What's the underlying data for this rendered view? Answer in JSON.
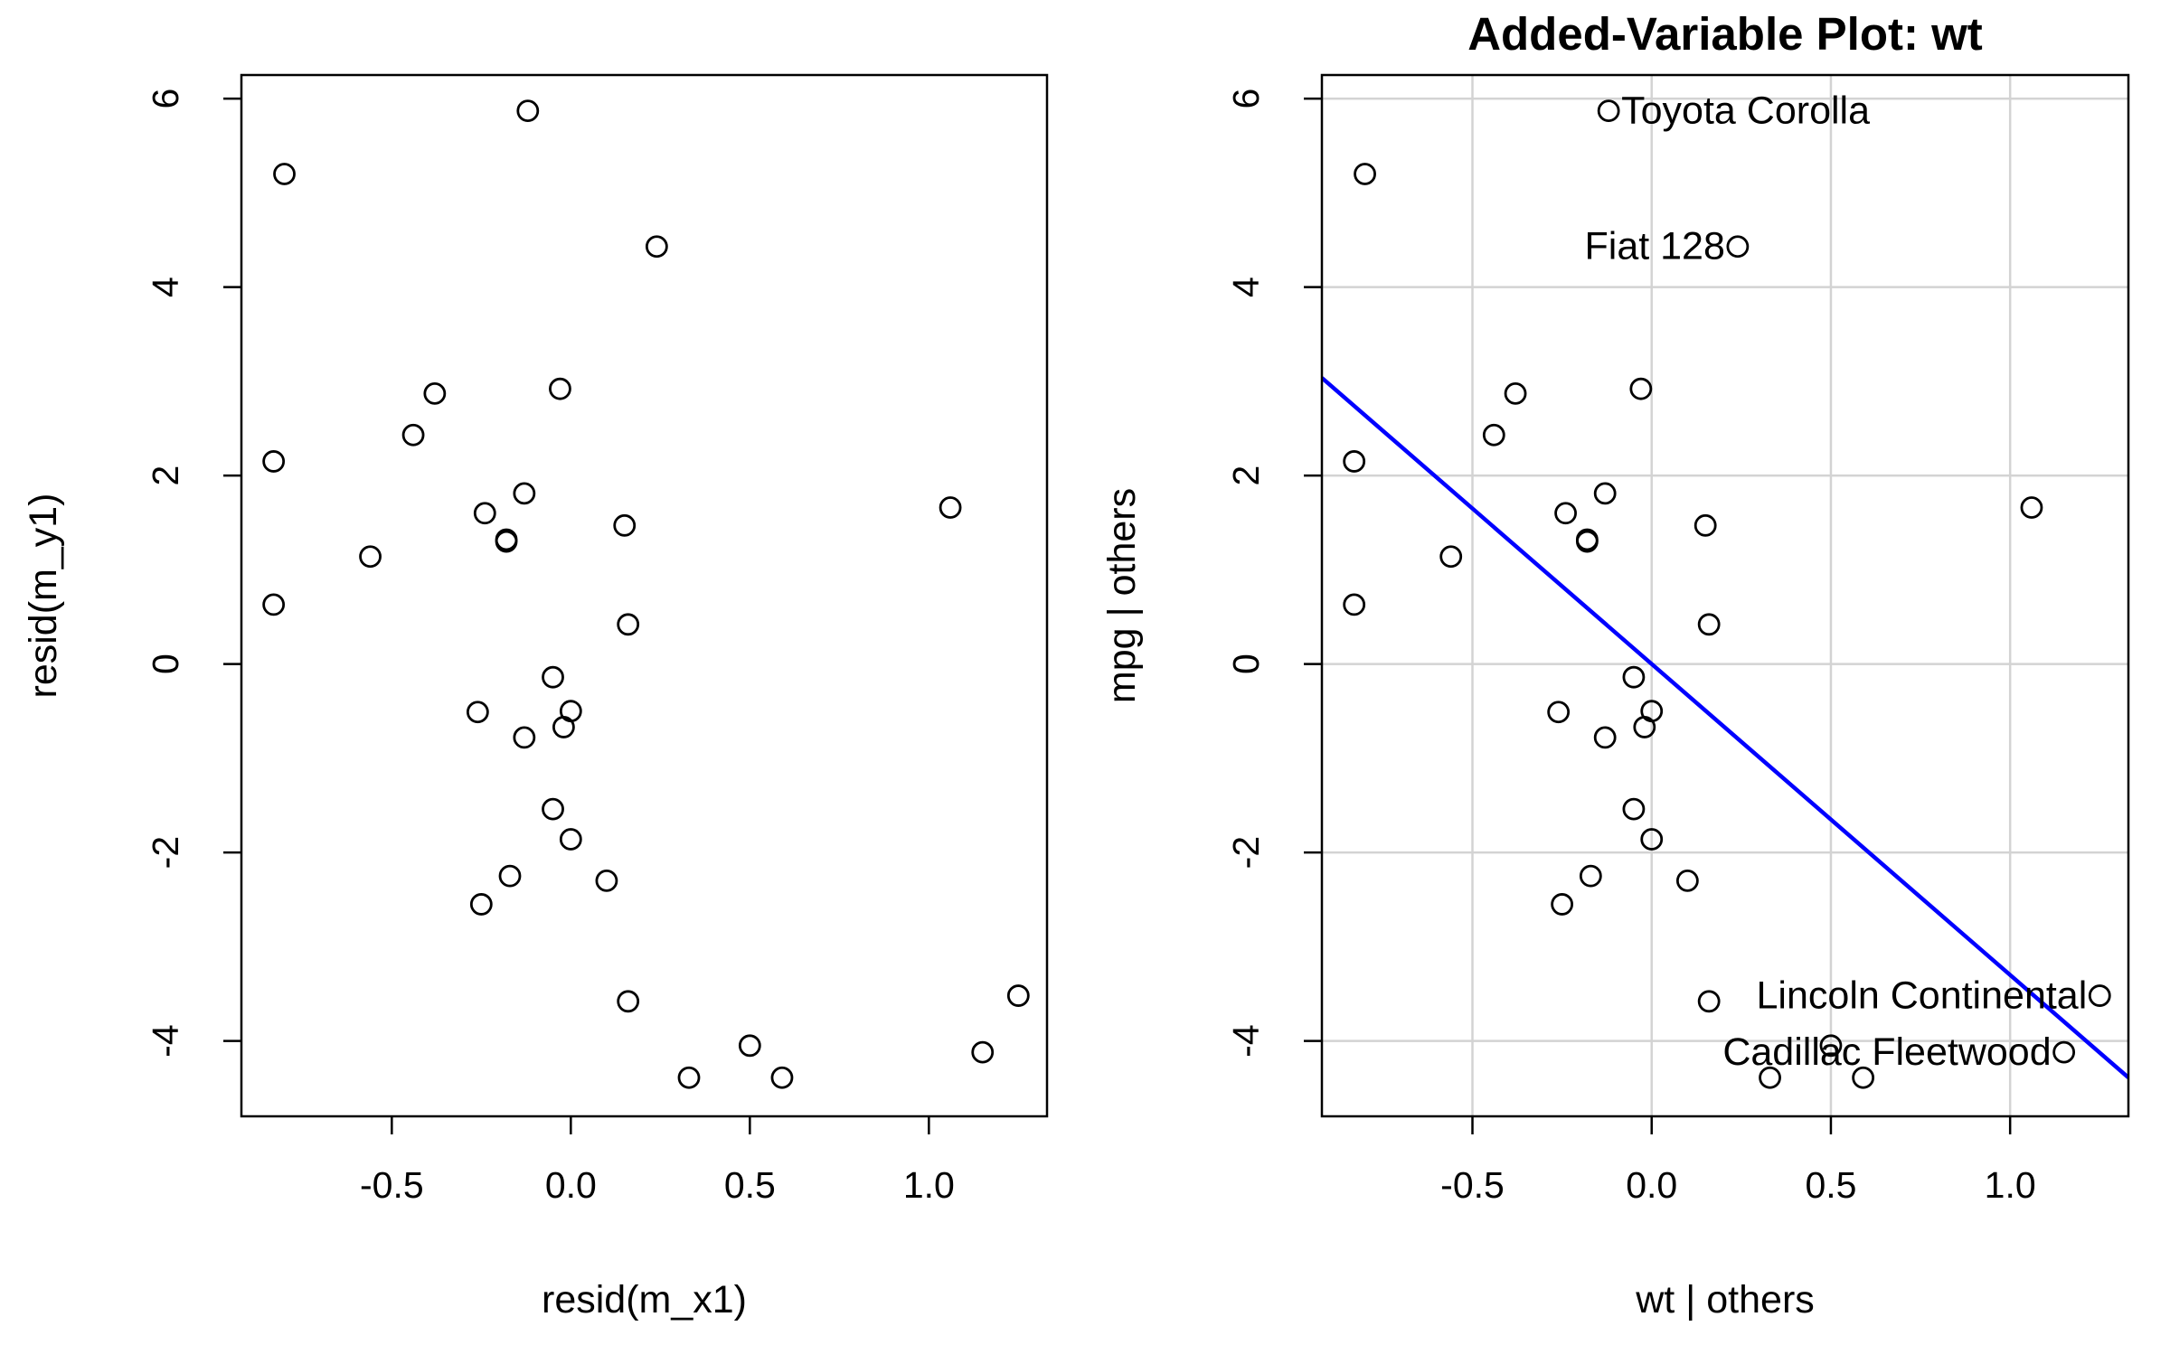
{
  "colors": {
    "points": "#000000",
    "regression_line": "#0000ff",
    "grid": "#d3d3d3",
    "frame": "#000000",
    "background": "#ffffff"
  },
  "chart_data": [
    {
      "type": "scatter",
      "title": "",
      "xlabel": "resid(m_x1)",
      "ylabel": "resid(m_y1)",
      "xlim": [
        -0.92,
        1.33
      ],
      "ylim": [
        -4.8,
        6.25
      ],
      "x_ticks": [
        -0.5,
        0.0,
        0.5,
        1.0
      ],
      "x_tick_labels": [
        "-0.5",
        "0.0",
        "0.5",
        "1.0"
      ],
      "y_ticks": [
        -4,
        -2,
        0,
        2,
        4,
        6
      ],
      "y_tick_labels": [
        "-4",
        "-2",
        "0",
        "2",
        "4",
        "6"
      ],
      "grid": false,
      "points": [
        {
          "x": -0.12,
          "y": 5.87
        },
        {
          "x": -0.8,
          "y": 5.2
        },
        {
          "x": 0.24,
          "y": 4.43
        },
        {
          "x": -0.03,
          "y": 2.92
        },
        {
          "x": -0.38,
          "y": 2.87
        },
        {
          "x": -0.44,
          "y": 2.43
        },
        {
          "x": -0.83,
          "y": 2.15
        },
        {
          "x": -0.13,
          "y": 1.81
        },
        {
          "x": 1.06,
          "y": 1.66
        },
        {
          "x": -0.24,
          "y": 1.6
        },
        {
          "x": 0.15,
          "y": 1.47
        },
        {
          "x": -0.18,
          "y": 1.32
        },
        {
          "x": -0.18,
          "y": 1.3
        },
        {
          "x": -0.56,
          "y": 1.14
        },
        {
          "x": -0.83,
          "y": 0.63
        },
        {
          "x": 0.16,
          "y": 0.42
        },
        {
          "x": -0.05,
          "y": -0.14
        },
        {
          "x": -0.26,
          "y": -0.51
        },
        {
          "x": 0.0,
          "y": -0.5
        },
        {
          "x": -0.02,
          "y": -0.67
        },
        {
          "x": -0.13,
          "y": -0.78
        },
        {
          "x": -0.05,
          "y": -1.54
        },
        {
          "x": 0.0,
          "y": -1.86
        },
        {
          "x": -0.17,
          "y": -2.25
        },
        {
          "x": 0.1,
          "y": -2.3
        },
        {
          "x": -0.25,
          "y": -2.55
        },
        {
          "x": 0.16,
          "y": -3.58
        },
        {
          "x": 1.25,
          "y": -3.52
        },
        {
          "x": 0.5,
          "y": -4.05
        },
        {
          "x": 1.15,
          "y": -4.12
        },
        {
          "x": 0.33,
          "y": -4.39
        },
        {
          "x": 0.59,
          "y": -4.39
        }
      ]
    },
    {
      "type": "scatter",
      "title": "Added-Variable Plot: wt",
      "xlabel": "wt | others",
      "ylabel": "mpg  | others",
      "xlim": [
        -0.92,
        1.33
      ],
      "ylim": [
        -4.8,
        6.25
      ],
      "x_ticks": [
        -0.5,
        0.0,
        0.5,
        1.0
      ],
      "x_tick_labels": [
        "-0.5",
        "0.0",
        "0.5",
        "1.0"
      ],
      "y_ticks": [
        -4,
        -2,
        0,
        2,
        4,
        6
      ],
      "y_tick_labels": [
        "-4",
        "-2",
        "0",
        "2",
        "4",
        "6"
      ],
      "grid": true,
      "regression_line": {
        "intercept": 0.0,
        "slope": -3.3
      },
      "points": [
        {
          "x": -0.12,
          "y": 5.87
        },
        {
          "x": -0.8,
          "y": 5.2
        },
        {
          "x": 0.24,
          "y": 4.43
        },
        {
          "x": -0.03,
          "y": 2.92
        },
        {
          "x": -0.38,
          "y": 2.87
        },
        {
          "x": -0.44,
          "y": 2.43
        },
        {
          "x": -0.83,
          "y": 2.15
        },
        {
          "x": -0.13,
          "y": 1.81
        },
        {
          "x": 1.06,
          "y": 1.66
        },
        {
          "x": -0.24,
          "y": 1.6
        },
        {
          "x": 0.15,
          "y": 1.47
        },
        {
          "x": -0.18,
          "y": 1.32
        },
        {
          "x": -0.18,
          "y": 1.3
        },
        {
          "x": -0.56,
          "y": 1.14
        },
        {
          "x": -0.83,
          "y": 0.63
        },
        {
          "x": 0.16,
          "y": 0.42
        },
        {
          "x": -0.05,
          "y": -0.14
        },
        {
          "x": -0.26,
          "y": -0.51
        },
        {
          "x": 0.0,
          "y": -0.5
        },
        {
          "x": -0.02,
          "y": -0.67
        },
        {
          "x": -0.13,
          "y": -0.78
        },
        {
          "x": -0.05,
          "y": -1.54
        },
        {
          "x": 0.0,
          "y": -1.86
        },
        {
          "x": -0.17,
          "y": -2.25
        },
        {
          "x": 0.1,
          "y": -2.3
        },
        {
          "x": -0.25,
          "y": -2.55
        },
        {
          "x": 0.16,
          "y": -3.58
        },
        {
          "x": 1.25,
          "y": -3.52
        },
        {
          "x": 0.5,
          "y": -4.05
        },
        {
          "x": 1.15,
          "y": -4.12
        },
        {
          "x": 0.33,
          "y": -4.39
        },
        {
          "x": 0.59,
          "y": -4.39
        }
      ],
      "point_labels": [
        {
          "text": "Toyota Corolla",
          "x": -0.12,
          "y": 5.87,
          "side": "right"
        },
        {
          "text": "Fiat 128",
          "x": 0.24,
          "y": 4.43,
          "side": "left"
        },
        {
          "text": "Lincoln Continental",
          "x": 1.25,
          "y": -3.52,
          "side": "left"
        },
        {
          "text": "Cadillac Fleetwood",
          "x": 1.15,
          "y": -4.12,
          "side": "left"
        }
      ]
    }
  ]
}
